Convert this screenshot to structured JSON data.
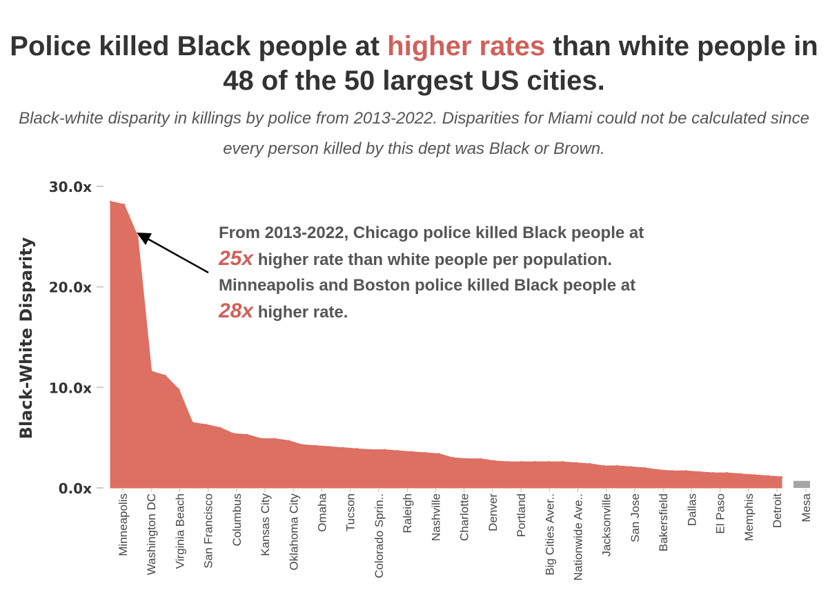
{
  "title": {
    "part1": "Police killed Black people at ",
    "highlight": "higher rates",
    "part2": " than white people in 48 of the 50 largest US cities."
  },
  "subtitle": "Black-white disparity in killings by police from 2013-2022. Disparities for Miami could not be calculated since every person killed by this dept was Black or Brown.",
  "annotation": {
    "part1": "From 2013-2022, Chicago police killed Black people at ",
    "em1": "25x",
    "part2": " higher rate than white people per population. Minneapolis and Boston police killed Black people at ",
    "em2": "28x",
    "part3": " higher rate."
  },
  "colors": {
    "accent": "#d0605a",
    "area": "#dd6f63",
    "other_bar": "#a6a6a6",
    "text": "#333333"
  },
  "chart_data": {
    "type": "area",
    "ylabel": "Black-White Disparity",
    "ylim": [
      0,
      30
    ],
    "yticks": [
      {
        "value": 0,
        "label": "0.0x"
      },
      {
        "value": 10,
        "label": "10.0x"
      },
      {
        "value": 20,
        "label": "20.0x"
      },
      {
        "value": 30,
        "label": "30.0x"
      }
    ],
    "x_tick_labels": [
      "Minneapolis",
      "Washington DC",
      "Virginia Beach",
      "San Francisco",
      "Columbus",
      "Kansas City",
      "Oklahoma City",
      "Omaha",
      "Tucson",
      "Colorado Sprin..",
      "Raleigh",
      "Nashville",
      "Charlotte",
      "Denver",
      "Portland",
      "Big Cities Aver..",
      "Nationwide Ave..",
      "Jacksonville",
      "San Jose",
      "Bakersfield",
      "Dallas",
      "El Paso",
      "Memphis",
      "Detroit",
      "Mesa"
    ],
    "values": [
      28.5,
      28.2,
      25.0,
      11.6,
      11.2,
      9.8,
      6.5,
      6.3,
      6.0,
      5.4,
      5.3,
      4.9,
      4.9,
      4.7,
      4.3,
      4.2,
      4.1,
      4.0,
      3.9,
      3.8,
      3.8,
      3.7,
      3.6,
      3.5,
      3.4,
      3.0,
      2.9,
      2.9,
      2.7,
      2.6,
      2.6,
      2.6,
      2.6,
      2.6,
      2.5,
      2.4,
      2.2,
      2.2,
      2.1,
      2.0,
      1.8,
      1.7,
      1.7,
      1.6,
      1.5,
      1.5,
      1.4,
      1.3,
      1.2,
      1.1
    ],
    "other_value": 0.7,
    "annotated_points": [
      {
        "city": "Chicago",
        "value": 25
      },
      {
        "city": "Minneapolis",
        "value": 28
      },
      {
        "city": "Boston",
        "value": 28
      }
    ]
  }
}
